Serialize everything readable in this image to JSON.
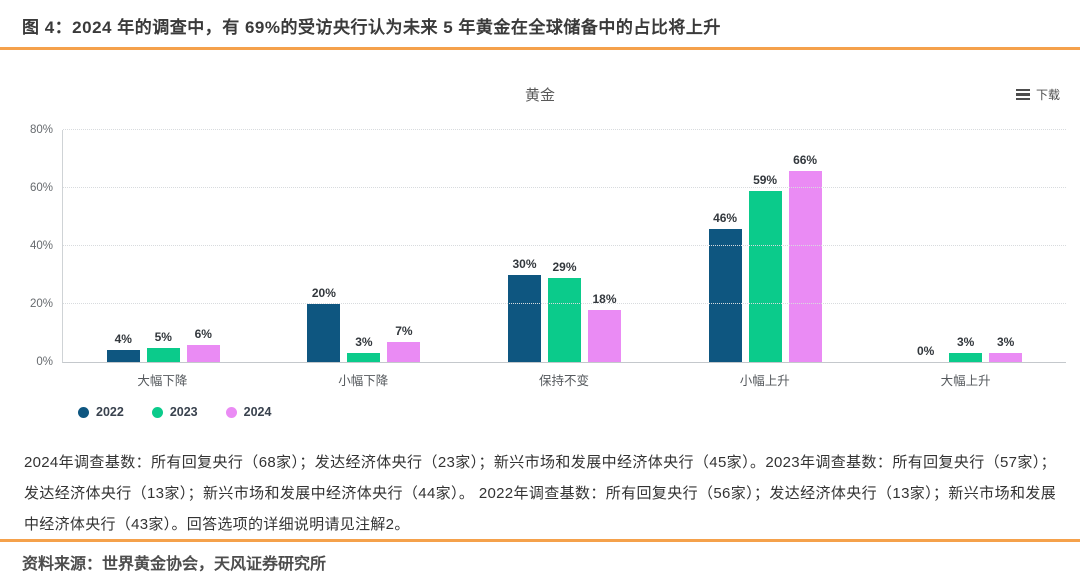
{
  "header": {
    "title": "图 4：2024 年的调查中，有 69%的受访央行认为未来 5 年黄金在全球储备中的占比将上升"
  },
  "chart": {
    "title": "黄金",
    "download_label": "下载"
  },
  "chart_data": {
    "type": "bar",
    "title": "黄金",
    "categories": [
      "大幅下降",
      "小幅下降",
      "保持不变",
      "小幅上升",
      "大幅上升"
    ],
    "series": [
      {
        "name": "2022",
        "color": "#0E5680",
        "values": [
          4,
          20,
          30,
          46,
          0
        ]
      },
      {
        "name": "2023",
        "color": "#0BCB8B",
        "values": [
          5,
          3,
          29,
          59,
          3
        ]
      },
      {
        "name": "2024",
        "color": "#EA8BF4",
        "values": [
          6,
          7,
          18,
          66,
          3
        ]
      }
    ],
    "ylim": [
      0,
      80
    ],
    "yticks": [
      0,
      20,
      40,
      60,
      80
    ],
    "ytick_suffix": "%",
    "value_label_suffix": "%",
    "grid": "horizontal-dotted",
    "legend_position": "bottom-left",
    "value_labels": true
  },
  "notes": "2024年调查基数：所有回复央行（68家）；发达经济体央行（23家）；新兴市场和发展中经济体央行（45家）。2023年调查基数：所有回复央行（57家）；发达经济体央行（13家）；新兴市场和发展中经济体央行（44家）。 2022年调查基数：所有回复央行（56家）；发达经济体央行（13家）；新兴市场和发展中经济体央行（43家）。回答选项的详细说明请见注解2。",
  "footer": {
    "source": "资料来源：世界黄金协会，天风证券研究所"
  },
  "colors": {
    "accent_rule": "#F5A14B",
    "bar_2022": "#0E5680",
    "bar_2023": "#0BCB8B",
    "bar_2024": "#EA8BF4"
  }
}
